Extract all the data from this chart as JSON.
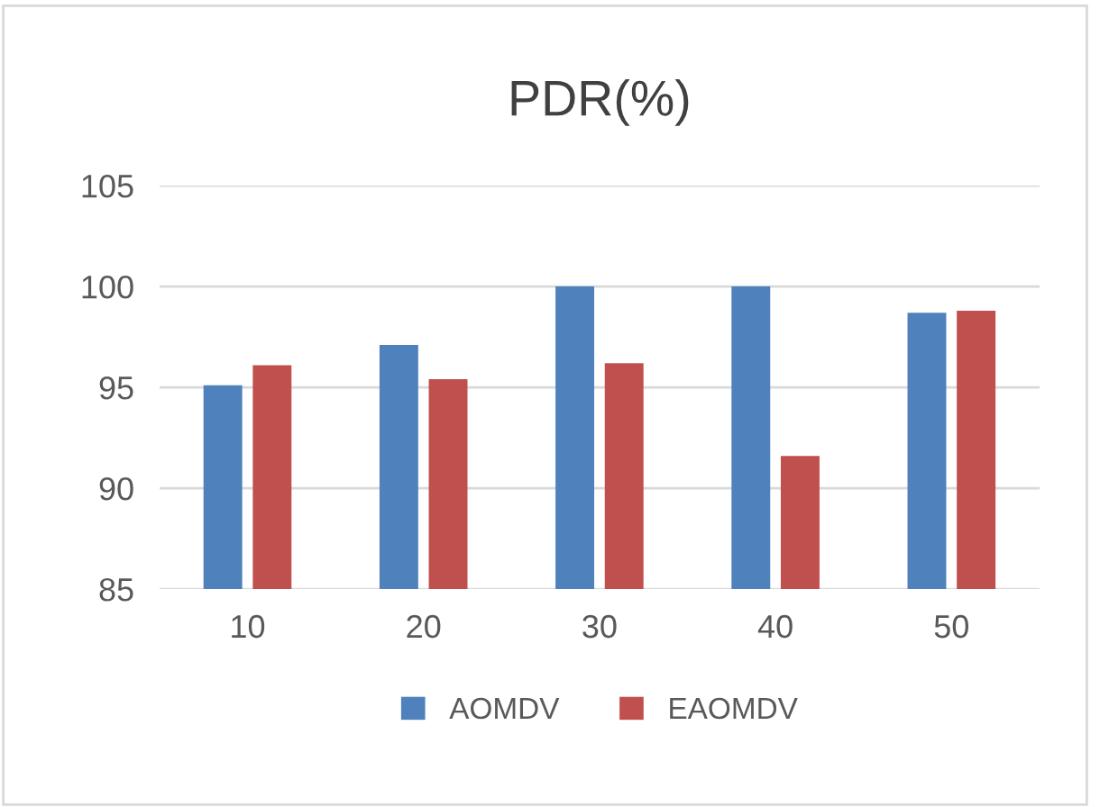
{
  "chart_data": {
    "type": "bar",
    "title": "PDR(%)",
    "categories": [
      "10",
      "20",
      "30",
      "40",
      "50"
    ],
    "series": [
      {
        "name": "AOMDV",
        "color": "#4f81bd",
        "values": [
          95.1,
          97.1,
          100,
          100,
          98.7
        ]
      },
      {
        "name": "EAOMDV",
        "color": "#c0504d",
        "values": [
          96.1,
          95.4,
          96.2,
          91.6,
          98.8
        ]
      }
    ],
    "ylim": [
      85,
      105
    ],
    "yticks": [
      85,
      90,
      95,
      100,
      105
    ],
    "grid": "y",
    "legend": "bottom"
  }
}
